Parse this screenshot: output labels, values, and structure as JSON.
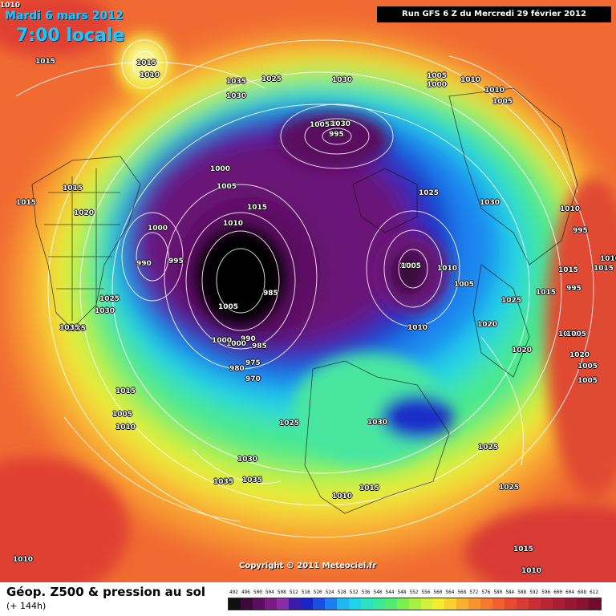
{
  "header": {
    "date": "Mardi 6 mars 2012",
    "local_time": "7:00 locale",
    "run_info": "Run GFS 6 Z du Mercredi 29 février 2012",
    "corner_value": "1010"
  },
  "copyright": "Copyright © 2011 Meteociel.fr",
  "footer": {
    "title": "Géop. Z500 & pression au sol",
    "forecast_step": "(+ 144h)"
  },
  "legend": {
    "ticks": [
      "492",
      "496",
      "500",
      "504",
      "508",
      "512",
      "516",
      "520",
      "524",
      "528",
      "532",
      "536",
      "540",
      "544",
      "548",
      "552",
      "556",
      "560",
      "564",
      "568",
      "572",
      "576",
      "580",
      "584",
      "588",
      "592",
      "596",
      "600",
      "604",
      "608",
      "612"
    ],
    "colors": [
      "#101010",
      "#3a0a3a",
      "#5a0f5e",
      "#7a1a84",
      "#8a2ca8",
      "#3b1ca8",
      "#1c24c8",
      "#1a4ee0",
      "#1e7ef0",
      "#20b6f4",
      "#22d2e8",
      "#2ce0c4",
      "#3ce89a",
      "#52ec70",
      "#7af050",
      "#a8f040",
      "#d4f03a",
      "#f4ec30",
      "#f8d030",
      "#f8b030",
      "#f89430",
      "#f47a30",
      "#f06030",
      "#e84a30",
      "#d83a34",
      "#c82e34",
      "#b82634",
      "#a81e34",
      "#981834",
      "#881234",
      "#700c2c"
    ]
  },
  "pressure_labels": [
    {
      "text": "1015"
    },
    {
      "text": "1015"
    },
    {
      "text": "1010"
    },
    {
      "text": "1035"
    },
    {
      "text": "1025"
    },
    {
      "text": "1030"
    },
    {
      "text": "1030"
    },
    {
      "text": "1005"
    },
    {
      "text": "1000"
    },
    {
      "text": "1010"
    },
    {
      "text": "1010"
    },
    {
      "text": "1005"
    },
    {
      "text": "1005"
    },
    {
      "text": "995"
    },
    {
      "text": "1000"
    },
    {
      "text": "1000"
    },
    {
      "text": "1005"
    },
    {
      "text": "1015"
    },
    {
      "text": "1015"
    },
    {
      "text": "1020"
    },
    {
      "text": "1025"
    },
    {
      "text": "1030"
    },
    {
      "text": "1010"
    },
    {
      "text": "1010"
    },
    {
      "text": "1015"
    },
    {
      "text": "1005"
    },
    {
      "text": "995"
    },
    {
      "text": "1000"
    },
    {
      "text": "1010"
    },
    {
      "text": "1020"
    },
    {
      "text": "985"
    },
    {
      "text": "1005"
    },
    {
      "text": "1005"
    },
    {
      "text": "1015"
    },
    {
      "text": "1025"
    },
    {
      "text": "1020"
    },
    {
      "text": "1025"
    },
    {
      "text": "1030"
    },
    {
      "text": "1035"
    },
    {
      "text": "975"
    },
    {
      "text": "990"
    },
    {
      "text": "985"
    },
    {
      "text": "1000"
    },
    {
      "text": "980"
    },
    {
      "text": "970"
    },
    {
      "text": "1010"
    },
    {
      "text": "1015"
    },
    {
      "text": "1005"
    },
    {
      "text": "1010"
    },
    {
      "text": "1025"
    },
    {
      "text": "1030"
    },
    {
      "text": "1020"
    },
    {
      "text": "1005"
    },
    {
      "text": "1005"
    },
    {
      "text": "1030"
    },
    {
      "text": "1035"
    },
    {
      "text": "1035"
    },
    {
      "text": "1010"
    },
    {
      "text": "1015"
    },
    {
      "text": "1025"
    },
    {
      "text": "1025"
    },
    {
      "text": "1015"
    },
    {
      "text": "1010"
    },
    {
      "text": "1010"
    },
    {
      "text": "1015"
    },
    {
      "text": "1020"
    },
    {
      "text": "1005"
    },
    {
      "text": "1005"
    },
    {
      "text": "1005"
    },
    {
      "text": "995"
    },
    {
      "text": "1030"
    },
    {
      "text": "1010"
    },
    {
      "text": "1015"
    },
    {
      "text": "1035"
    },
    {
      "text": "1000"
    },
    {
      "text": "995"
    },
    {
      "text": "990"
    }
  ]
}
